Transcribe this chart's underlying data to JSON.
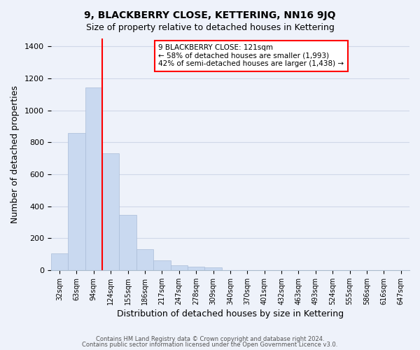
{
  "title": "9, BLACKBERRY CLOSE, KETTERING, NN16 9JQ",
  "subtitle": "Size of property relative to detached houses in Kettering",
  "xlabel": "Distribution of detached houses by size in Kettering",
  "ylabel": "Number of detached properties",
  "bar_values": [
    105,
    860,
    1145,
    730,
    345,
    130,
    60,
    30,
    20,
    15,
    0,
    0,
    0,
    0,
    0,
    0,
    0,
    0,
    0,
    0,
    0
  ],
  "bar_labels": [
    "32sqm",
    "63sqm",
    "94sqm",
    "124sqm",
    "155sqm",
    "186sqm",
    "217sqm",
    "247sqm",
    "278sqm",
    "309sqm",
    "340sqm",
    "370sqm",
    "401sqm",
    "432sqm",
    "463sqm",
    "493sqm",
    "524sqm",
    "555sqm",
    "586sqm",
    "616sqm",
    "647sqm"
  ],
  "bar_color": "#c9d9f0",
  "bar_edge_color": "#aabcd8",
  "grid_color": "#d0d8e8",
  "bg_color": "#eef2fa",
  "property_label": "9 BLACKBERRY CLOSE: 121sqm",
  "annotation_line1": "← 58% of detached houses are smaller (1,993)",
  "annotation_line2": "42% of semi-detached houses are larger (1,438) →",
  "red_line_x": 2.5,
  "ylim": [
    0,
    1450
  ],
  "yticks": [
    0,
    200,
    400,
    600,
    800,
    1000,
    1200,
    1400
  ],
  "footer1": "Contains HM Land Registry data © Crown copyright and database right 2024.",
  "footer2": "Contains public sector information licensed under the Open Government Licence v3.0."
}
